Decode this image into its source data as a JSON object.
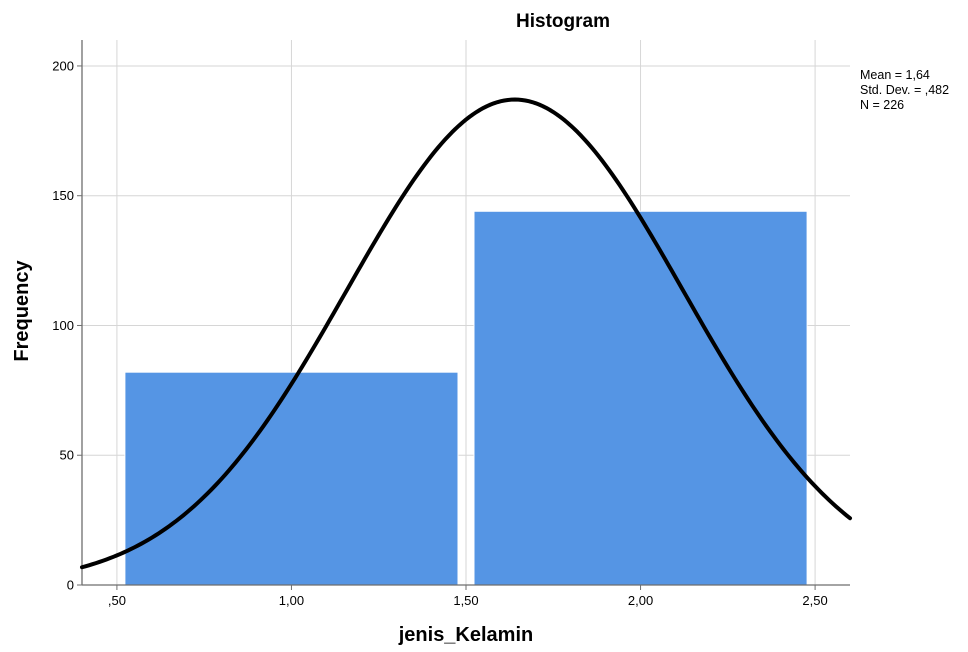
{
  "chart_data": {
    "type": "bar",
    "title": "Histogram",
    "xlabel": "jenis_Kelamin",
    "ylabel": "Frequency",
    "xlim": [
      0.4,
      2.6
    ],
    "ylim": [
      0,
      210
    ],
    "x_ticks": [
      {
        "value": 0.5,
        "label": ",50"
      },
      {
        "value": 1.0,
        "label": "1,00"
      },
      {
        "value": 1.5,
        "label": "1,50"
      },
      {
        "value": 2.0,
        "label": "2,00"
      },
      {
        "value": 2.5,
        "label": "2,50"
      }
    ],
    "y_ticks": [
      {
        "value": 0,
        "label": "0"
      },
      {
        "value": 50,
        "label": "50"
      },
      {
        "value": 100,
        "label": "100"
      },
      {
        "value": 150,
        "label": "150"
      },
      {
        "value": 200,
        "label": "200"
      }
    ],
    "bins": [
      {
        "x_start": 0.5,
        "x_end": 1.5,
        "value": 82
      },
      {
        "x_start": 1.5,
        "x_end": 2.5,
        "value": 144
      }
    ],
    "grid": true,
    "bar_color": "#5595E4",
    "curve_color": "#000000",
    "normal_curve": {
      "mean": 1.64,
      "std_dev": 0.482,
      "n": 226,
      "bin_width": 1.0
    },
    "stats": {
      "mean_label": "Mean = 1,64",
      "std_label": "Std. Dev. = ,482",
      "n_label": "N = 226"
    }
  }
}
